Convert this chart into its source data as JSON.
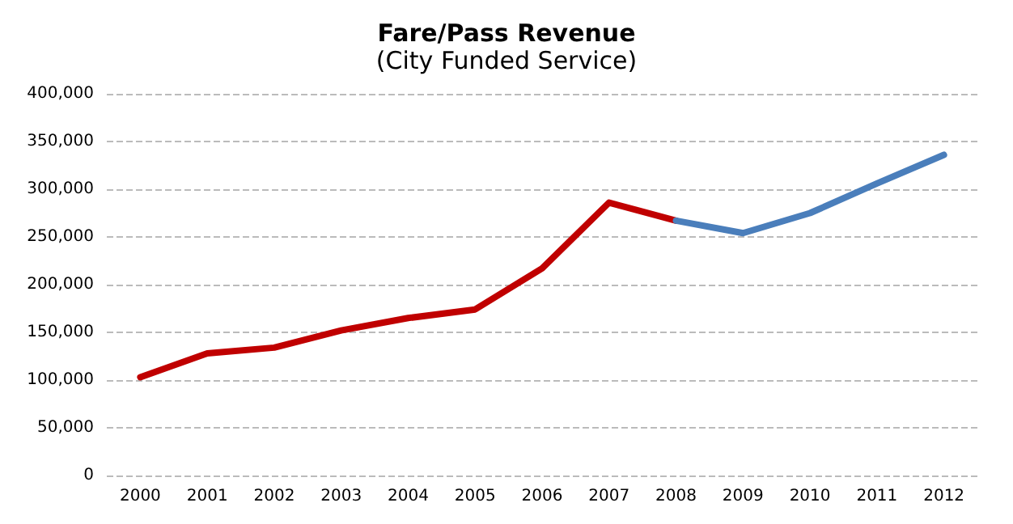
{
  "chart_data": {
    "type": "line",
    "title": "Fare/Pass Revenue",
    "subtitle": "(City Funded Service)",
    "categories": [
      "2000",
      "2001",
      "2002",
      "2003",
      "2004",
      "2005",
      "2006",
      "2007",
      "2008",
      "2009",
      "2010",
      "2011",
      "2012"
    ],
    "series": [
      {
        "color": "#c00000",
        "values": [
          103000,
          128000,
          134000,
          152000,
          165000,
          174000,
          217000,
          286000,
          267000,
          null,
          null,
          null,
          null
        ]
      },
      {
        "color": "#4a7ebb",
        "values": [
          null,
          null,
          null,
          null,
          null,
          null,
          null,
          null,
          267000,
          254000,
          275000,
          306000,
          336000
        ]
      }
    ],
    "ylim": [
      0,
      400000
    ],
    "yticks": [
      {
        "value": 0,
        "label": "0"
      },
      {
        "value": 50000,
        "label": "50,000"
      },
      {
        "value": 100000,
        "label": "100,000"
      },
      {
        "value": 150000,
        "label": "150,000"
      },
      {
        "value": 200000,
        "label": "200,000"
      },
      {
        "value": 250000,
        "label": "250,000"
      },
      {
        "value": 300000,
        "label": "300,000"
      },
      {
        "value": 350000,
        "label": "350,000"
      },
      {
        "value": 400000,
        "label": "400,000"
      }
    ],
    "grid": "y",
    "line_style": "solid",
    "marker": "none"
  }
}
